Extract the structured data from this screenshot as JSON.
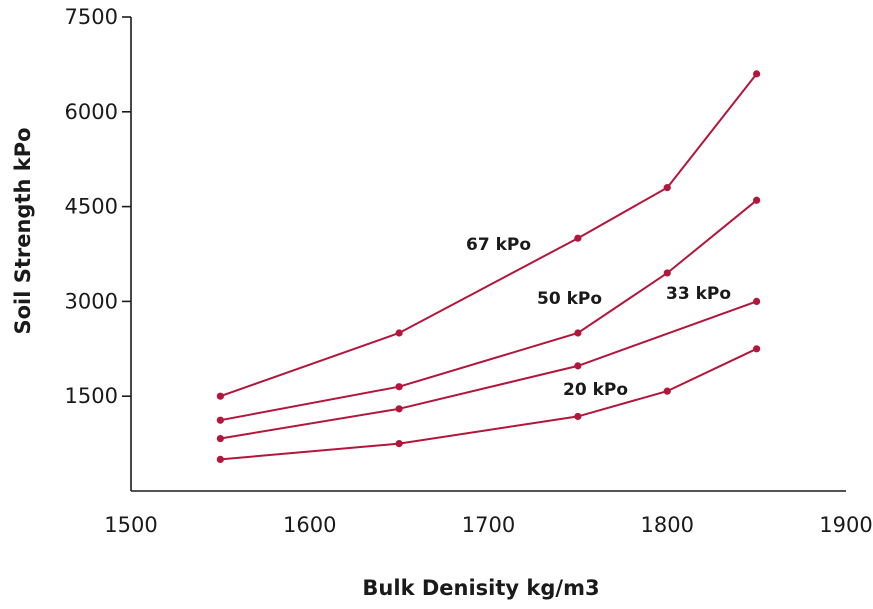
{
  "chart_data": {
    "type": "line",
    "title": "",
    "xlabel": "Bulk Denisity kg/m3",
    "ylabel": "Soil Strength kPo",
    "xlim": [
      1500,
      1900
    ],
    "ylim": [
      0,
      7500
    ],
    "x_ticks": [
      "1500",
      "1600",
      "1700",
      "1800",
      "1900"
    ],
    "y_ticks": [
      "1500",
      "3000",
      "4500",
      "6000",
      "7500"
    ],
    "grid": false,
    "legend": "none",
    "color": "#b3163a",
    "series": [
      {
        "name": "67 kPo",
        "x": [
          1550,
          1650,
          1750,
          1800,
          1850
        ],
        "values": [
          1500,
          2500,
          4000,
          4800,
          6600
        ]
      },
      {
        "name": "50 kPo",
        "x": [
          1550,
          1650,
          1750,
          1800,
          1850
        ],
        "values": [
          1120,
          1650,
          2500,
          3450,
          4600
        ]
      },
      {
        "name": "33 kPo",
        "x": [
          1550,
          1650,
          1750,
          1850
        ],
        "values": [
          830,
          1300,
          1980,
          3000
        ]
      },
      {
        "name": "20 kPo",
        "x": [
          1550,
          1650,
          1750,
          1800,
          1850
        ],
        "values": [
          500,
          750,
          1180,
          1580,
          2250
        ]
      }
    ]
  }
}
